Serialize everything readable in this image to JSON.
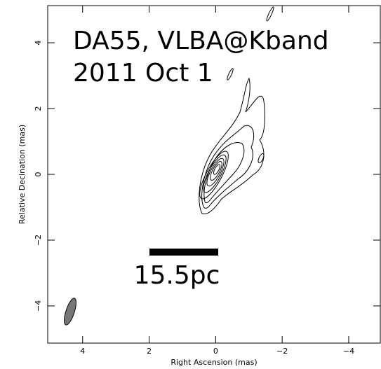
{
  "chart_data": {
    "type": "contour",
    "title": "DA55, VLBA@Kband",
    "subtitle": "2011 Oct 1",
    "annotation": "15.5pc",
    "x_label": "Right Ascension  (mas)",
    "y_label": "Relative Decination  (mas)",
    "xlim": [
      5.05,
      -4.95
    ],
    "ylim": [
      -5.13,
      5.13
    ],
    "xticks": [
      4,
      2,
      0,
      {
        "value": -2,
        "label": "−2"
      },
      {
        "value": -4,
        "label": "−4"
      }
    ],
    "yticks": [
      {
        "value": -4,
        "label": "−4"
      },
      {
        "value": -2,
        "label": "−2"
      },
      0,
      2,
      4
    ]
  }
}
